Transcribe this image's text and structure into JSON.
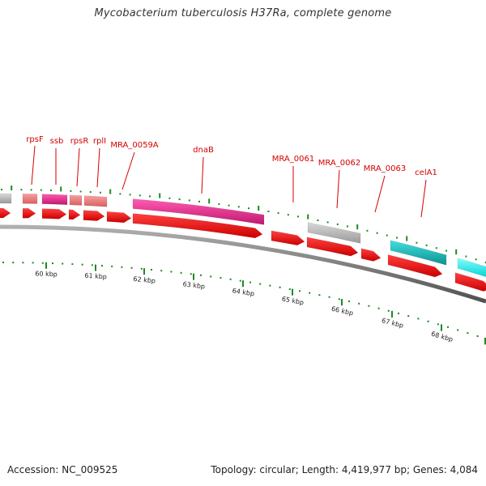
{
  "title": "Mycobacterium tuberculosis H37Ra, complete genome",
  "footer": {
    "accession": "Accession: NC_009525",
    "stats": "Topology: circular; Length: 4,419,977 bp; Genes: 4,084"
  },
  "colors": {
    "cds_strand": "#ff0000",
    "backbone": "#808080",
    "ticks": "#1e8a1e",
    "gene_label": "#d40000",
    "product_pink": "#f0288c",
    "product_salmon": "#f08080",
    "product_gray": "#bebebe",
    "product_teal": "#1ec8c8",
    "product_cyan": "#00ffff"
  },
  "gene_labels": [
    "rpsF",
    "ssb",
    "rpsR",
    "rplI",
    "MRA_0059A",
    "dnaB",
    "MRA_0061",
    "MRA_0062",
    "MRA_0063",
    "celA1"
  ],
  "kbp_labels": [
    "60 kbp",
    "61 kbp",
    "62 kbp",
    "63 kbp",
    "64 kbp",
    "65 kbp",
    "66 kbp",
    "67 kbp",
    "68 kbp"
  ]
}
